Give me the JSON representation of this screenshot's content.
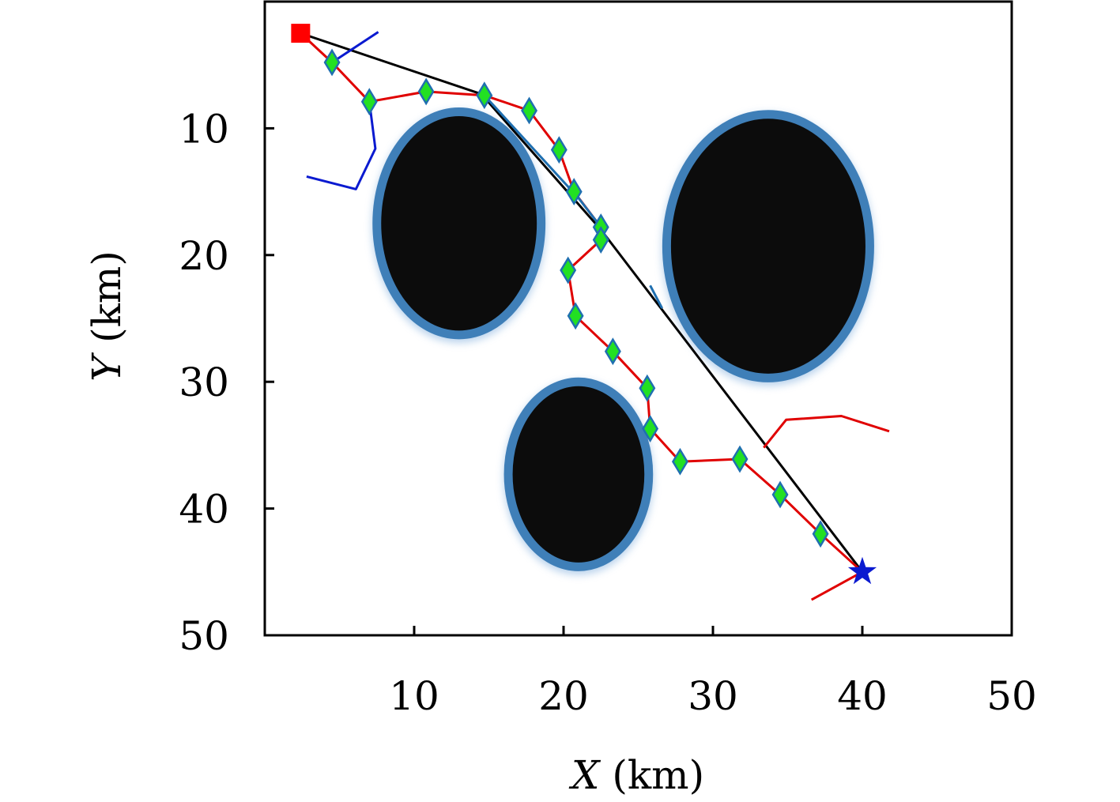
{
  "chart_data": {
    "type": "scatter",
    "title": "",
    "xlabel_var": "X",
    "xlabel_unit": " (km)",
    "ylabel_var": "Y",
    "ylabel_unit": " (km)",
    "xlim": [
      0,
      50
    ],
    "ylim": [
      50,
      0
    ],
    "y_inverted": true,
    "grid": false,
    "legend": "none",
    "x_ticks": [
      10,
      20,
      30,
      40,
      50
    ],
    "y_ticks": [
      10,
      20,
      30,
      40,
      50
    ],
    "obstacles": [
      {
        "cx": 13.0,
        "cy": 17.5,
        "rx": 5.5,
        "ry": 8.8
      },
      {
        "cx": 33.7,
        "cy": 19.3,
        "rx": 6.8,
        "ry": 10.4
      },
      {
        "cx": 21.0,
        "cy": 37.3,
        "rx": 4.7,
        "ry": 7.3
      }
    ],
    "start": {
      "x": 2.4,
      "y": 2.5
    },
    "goal": {
      "x": 40.0,
      "y": 45.0
    },
    "series": [
      {
        "role": "straight-reference",
        "color": "#000000",
        "points": [
          [
            2.4,
            2.5
          ],
          [
            14.5,
            7.3
          ],
          [
            22.5,
            18.0
          ],
          [
            40.0,
            45.0
          ]
        ]
      },
      {
        "role": "planned-path",
        "color": "#e00000",
        "points": [
          [
            2.4,
            2.5
          ],
          [
            4.5,
            4.8
          ],
          [
            7.0,
            7.9
          ],
          [
            10.8,
            7.1
          ],
          [
            14.7,
            7.4
          ],
          [
            17.7,
            8.6
          ],
          [
            19.7,
            11.7
          ],
          [
            20.7,
            15.0
          ],
          [
            22.5,
            17.8
          ],
          [
            22.5,
            18.8
          ],
          [
            20.3,
            21.2
          ],
          [
            20.8,
            24.8
          ],
          [
            23.3,
            27.6
          ],
          [
            25.6,
            30.5
          ],
          [
            25.8,
            33.7
          ],
          [
            27.8,
            36.3
          ],
          [
            31.8,
            36.1
          ],
          [
            34.5,
            38.9
          ],
          [
            37.2,
            42.0
          ],
          [
            40.0,
            45.0
          ]
        ],
        "waypoints": [
          [
            4.5,
            4.8
          ],
          [
            7.0,
            7.9
          ],
          [
            10.8,
            7.1
          ],
          [
            14.7,
            7.4
          ],
          [
            17.7,
            8.6
          ],
          [
            19.7,
            11.7
          ],
          [
            20.7,
            15.0
          ],
          [
            22.5,
            17.8
          ],
          [
            22.5,
            18.8
          ],
          [
            20.3,
            21.2
          ],
          [
            20.8,
            24.8
          ],
          [
            23.3,
            27.6
          ],
          [
            25.6,
            30.5
          ],
          [
            25.8,
            33.7
          ],
          [
            27.8,
            36.3
          ],
          [
            31.8,
            36.1
          ],
          [
            34.5,
            38.9
          ],
          [
            37.2,
            42.0
          ]
        ]
      },
      {
        "role": "blue-branch",
        "color": "#0a1ad0",
        "points": [
          [
            4.5,
            4.8
          ],
          [
            7.6,
            2.4
          ]
        ]
      },
      {
        "role": "blue-branch",
        "color": "#0a1ad0",
        "points": [
          [
            7.0,
            7.9
          ],
          [
            7.4,
            11.6
          ],
          [
            6.1,
            14.8
          ],
          [
            2.8,
            13.8
          ]
        ]
      },
      {
        "role": "teal-segment",
        "color": "#1f6fb0",
        "points": [
          [
            14.7,
            7.4
          ],
          [
            21.0,
            15.5
          ],
          [
            22.5,
            17.8
          ]
        ]
      },
      {
        "role": "teal-segment",
        "color": "#1f6fb0",
        "points": [
          [
            25.8,
            22.4
          ],
          [
            26.6,
            24.2
          ]
        ]
      },
      {
        "role": "red-branch",
        "color": "#e00000",
        "points": [
          [
            33.4,
            35.2
          ],
          [
            34.9,
            33.0
          ],
          [
            38.6,
            32.7
          ],
          [
            41.8,
            33.9
          ]
        ]
      },
      {
        "role": "red-branch",
        "color": "#e00000",
        "points": [
          [
            40.0,
            45.0
          ],
          [
            36.6,
            47.2
          ]
        ]
      }
    ]
  }
}
